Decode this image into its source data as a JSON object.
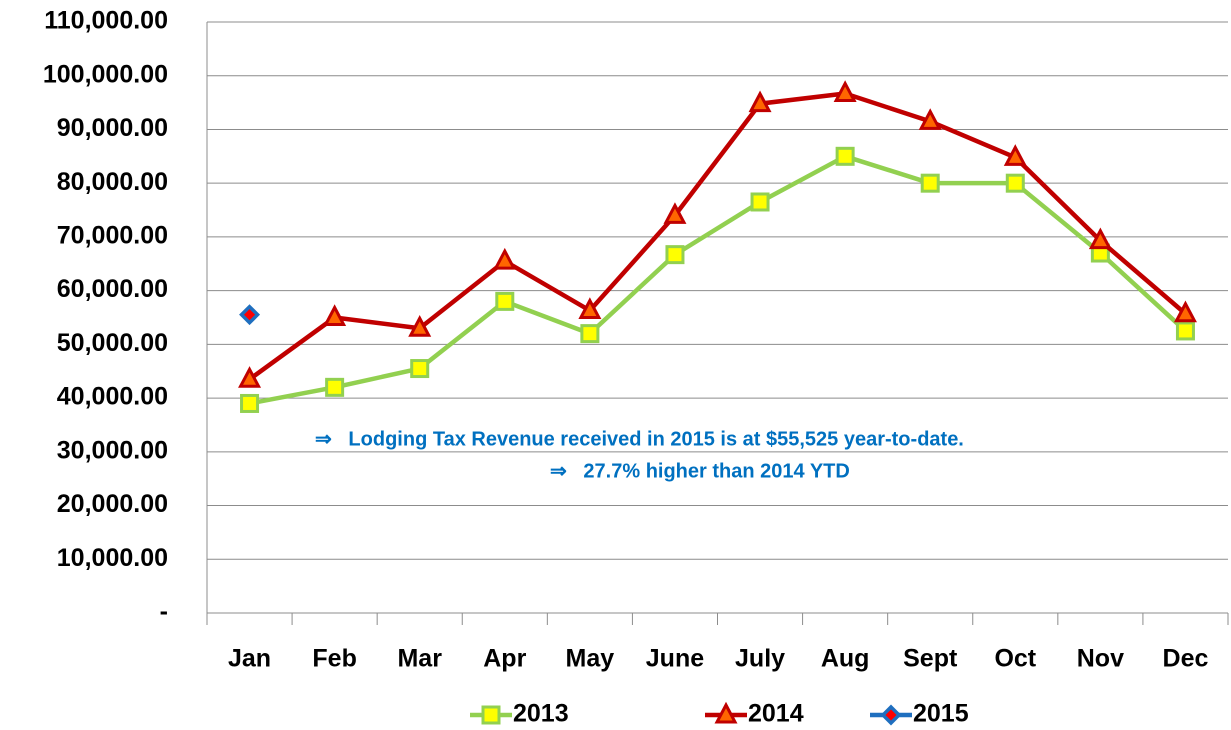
{
  "chart_data": {
    "type": "line",
    "categories": [
      "Jan",
      "Feb",
      "Mar",
      "Apr",
      "May",
      "June",
      "July",
      "Aug",
      "Sept",
      "Oct",
      "Nov",
      "Dec"
    ],
    "series": [
      {
        "name": "2013",
        "color": "#92d050",
        "marker": "square",
        "marker_fill": "#ffff00",
        "values": [
          39000,
          42000,
          45500,
          58000,
          52000,
          66700,
          76500,
          85000,
          80000,
          80000,
          67000,
          52500
        ]
      },
      {
        "name": "2014",
        "color": "#c00000",
        "marker": "triangle",
        "marker_fill": "#ff6600",
        "values": [
          43500,
          55000,
          53000,
          65500,
          56300,
          74000,
          94800,
          96700,
          91500,
          84800,
          69300,
          55700
        ]
      },
      {
        "name": "2015",
        "color": "#1f6fbf",
        "marker": "diamond",
        "marker_fill": "#ff0000",
        "values": [
          55525,
          null,
          null,
          null,
          null,
          null,
          null,
          null,
          null,
          null,
          null,
          null
        ]
      }
    ],
    "ylim": [
      0,
      110000
    ],
    "yticks": [
      {
        "value": 0,
        "label": "-"
      },
      {
        "value": 10000,
        "label": "10,000.00"
      },
      {
        "value": 20000,
        "label": "20,000.00"
      },
      {
        "value": 30000,
        "label": "30,000.00"
      },
      {
        "value": 40000,
        "label": "40,000.00"
      },
      {
        "value": 50000,
        "label": "50,000.00"
      },
      {
        "value": 60000,
        "label": "60,000.00"
      },
      {
        "value": 70000,
        "label": "70,000.00"
      },
      {
        "value": 80000,
        "label": "80,000.00"
      },
      {
        "value": 90000,
        "label": "90,000.00"
      },
      {
        "value": 100000,
        "label": "100,000.00"
      },
      {
        "value": 110000,
        "label": "110,000.00"
      }
    ],
    "grid": true,
    "legend": "bottom",
    "annotations": [
      "⇒   Lodging Tax Revenue received in 2015 is at $55,525 year-to-date.",
      "⇒   27.7% higher than 2014 YTD"
    ]
  }
}
